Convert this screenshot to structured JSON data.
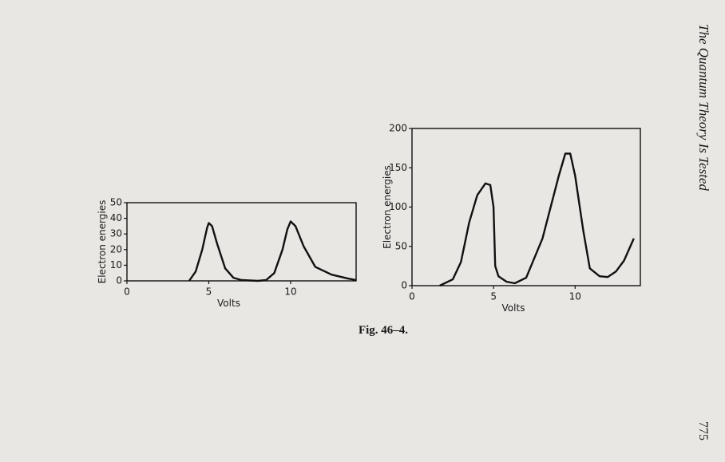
{
  "page_header": "The Quantum Theory Is Tested",
  "page_number": "775",
  "caption": "Fig. 46–4.",
  "chart_data": [
    {
      "type": "line",
      "x_label": "Volts",
      "y_label": "Electron energies",
      "x": [
        3.8,
        4.2,
        4.6,
        4.9,
        5.0,
        5.2,
        5.5,
        6.0,
        6.5,
        7,
        8,
        8.5,
        9,
        9.5,
        9.8,
        10,
        10.3,
        10.8,
        11.5,
        12.5,
        13.5,
        14
      ],
      "values": [
        0,
        6,
        20,
        34,
        37,
        35,
        24,
        8,
        2,
        0.5,
        0,
        0.5,
        5,
        20,
        33,
        38,
        35,
        22,
        9,
        4,
        1.5,
        0.5
      ],
      "color": "#111111",
      "xlim": [
        0,
        14
      ],
      "xticks": [
        0,
        5,
        10
      ],
      "ylim": [
        0,
        50
      ],
      "yticks": [
        0,
        10,
        20,
        30,
        40,
        50
      ]
    },
    {
      "type": "line",
      "x_label": "Volts",
      "y_label": "Electron energies",
      "x": [
        1.7,
        2.5,
        3,
        3.5,
        4,
        4.5,
        4.8,
        5.0,
        5.1,
        5.3,
        5.8,
        6.3,
        7,
        8,
        9,
        9.4,
        9.7,
        10,
        10.5,
        10.9,
        11.5,
        12,
        12.5,
        13,
        13.6
      ],
      "values": [
        0,
        8,
        30,
        80,
        115,
        130,
        128,
        100,
        25,
        12,
        5,
        3,
        10,
        60,
        140,
        168,
        168,
        140,
        70,
        22,
        12,
        11,
        18,
        32,
        60
      ],
      "color": "#111111",
      "xlim": [
        0,
        14
      ],
      "xticks": [
        0,
        5,
        10
      ],
      "ylim": [
        0,
        200
      ],
      "yticks": [
        0,
        50,
        100,
        150,
        200
      ]
    }
  ]
}
